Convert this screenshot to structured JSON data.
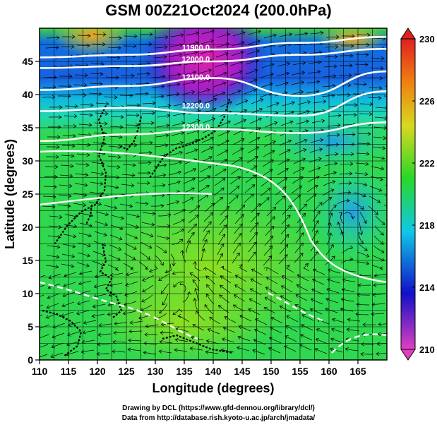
{
  "title": "GSM 00Z21Oct2024 (200.0hPa)",
  "x_axis_label": "Longitude (degrees)",
  "y_axis_label": "Latitude  (degrees)",
  "credit_line_1": "Drawing by DCL (https://www.gfd-dennou.org/library/dcl/)",
  "credit_line_2": "Data from http://database.rish.kyoto-u.ac.jp/arch/jmadata/",
  "map": {
    "longitude_range": [
      110,
      170
    ],
    "latitude_range": [
      0,
      50
    ],
    "longitude_ticks": [
      "110",
      "115",
      "120",
      "125",
      "130",
      "135",
      "140",
      "145",
      "150",
      "155",
      "160",
      "165"
    ],
    "latitude_ticks": [
      "0",
      "5",
      "10",
      "15",
      "20",
      "25",
      "30",
      "35",
      "40",
      "45"
    ],
    "grid": true,
    "fields": [
      "temperature shading",
      "geopotential height contours",
      "wind streamlines"
    ]
  },
  "colorbar": {
    "range": [
      210,
      230
    ],
    "tick_labels": [
      "210",
      "214",
      "218",
      "222",
      "226",
      "230"
    ],
    "colors": [
      "#e040c0",
      "#1010c8",
      "#10c8e8",
      "#28d828",
      "#d8d820",
      "#f08010",
      "#e02020"
    ]
  },
  "height_contours": [
    {
      "label": "11900.0",
      "lat_path": [
        45.6,
        46.0,
        46.8,
        47.8,
        48.7
      ]
    },
    {
      "label": "12000.0",
      "lat_path": [
        44.0,
        44.3,
        45.0,
        46.0,
        46.9
      ]
    },
    {
      "label": "12100.0",
      "lat_path": [
        40.7,
        41.3,
        42.5,
        39.8,
        43.5
      ]
    },
    {
      "label": "12200.0",
      "lat_path": [
        37.5,
        38.0,
        37.2,
        36.8,
        40.5
      ]
    },
    {
      "label": "12300.0",
      "lat_path": [
        33.0,
        34.0,
        34.8,
        34.2,
        35.8
      ]
    }
  ]
}
